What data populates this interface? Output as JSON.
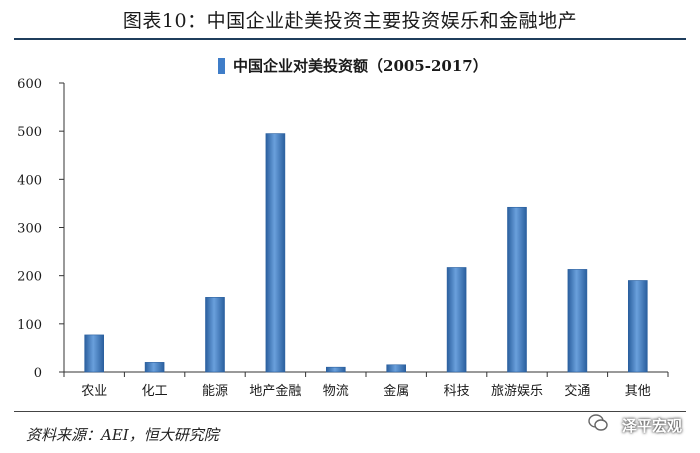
{
  "figure_title": "图表10：中国企业赴美投资主要投资娱乐和金融地产",
  "source_note": "资料来源：AEI，恒大研究院",
  "watermark": "泽平宏观",
  "colors": {
    "bar": "#3f7dc8",
    "bar_dark": "#2a5f9e",
    "rule": "#1f3d5c"
  },
  "chart_data": {
    "type": "bar",
    "categories": [
      "农业",
      "化工",
      "能源",
      "地产金融",
      "物流",
      "金属",
      "科技",
      "旅游娱乐",
      "交通",
      "其他"
    ],
    "series": [
      {
        "name": "中国企业对美投资额（2005-2017）",
        "values": [
          77,
          20,
          155,
          495,
          10,
          15,
          217,
          342,
          213,
          190
        ]
      }
    ],
    "ylim": [
      0,
      600
    ],
    "yticks": [
      0,
      100,
      200,
      300,
      400,
      500,
      600
    ],
    "grid": false,
    "legend_position": "top-center"
  }
}
